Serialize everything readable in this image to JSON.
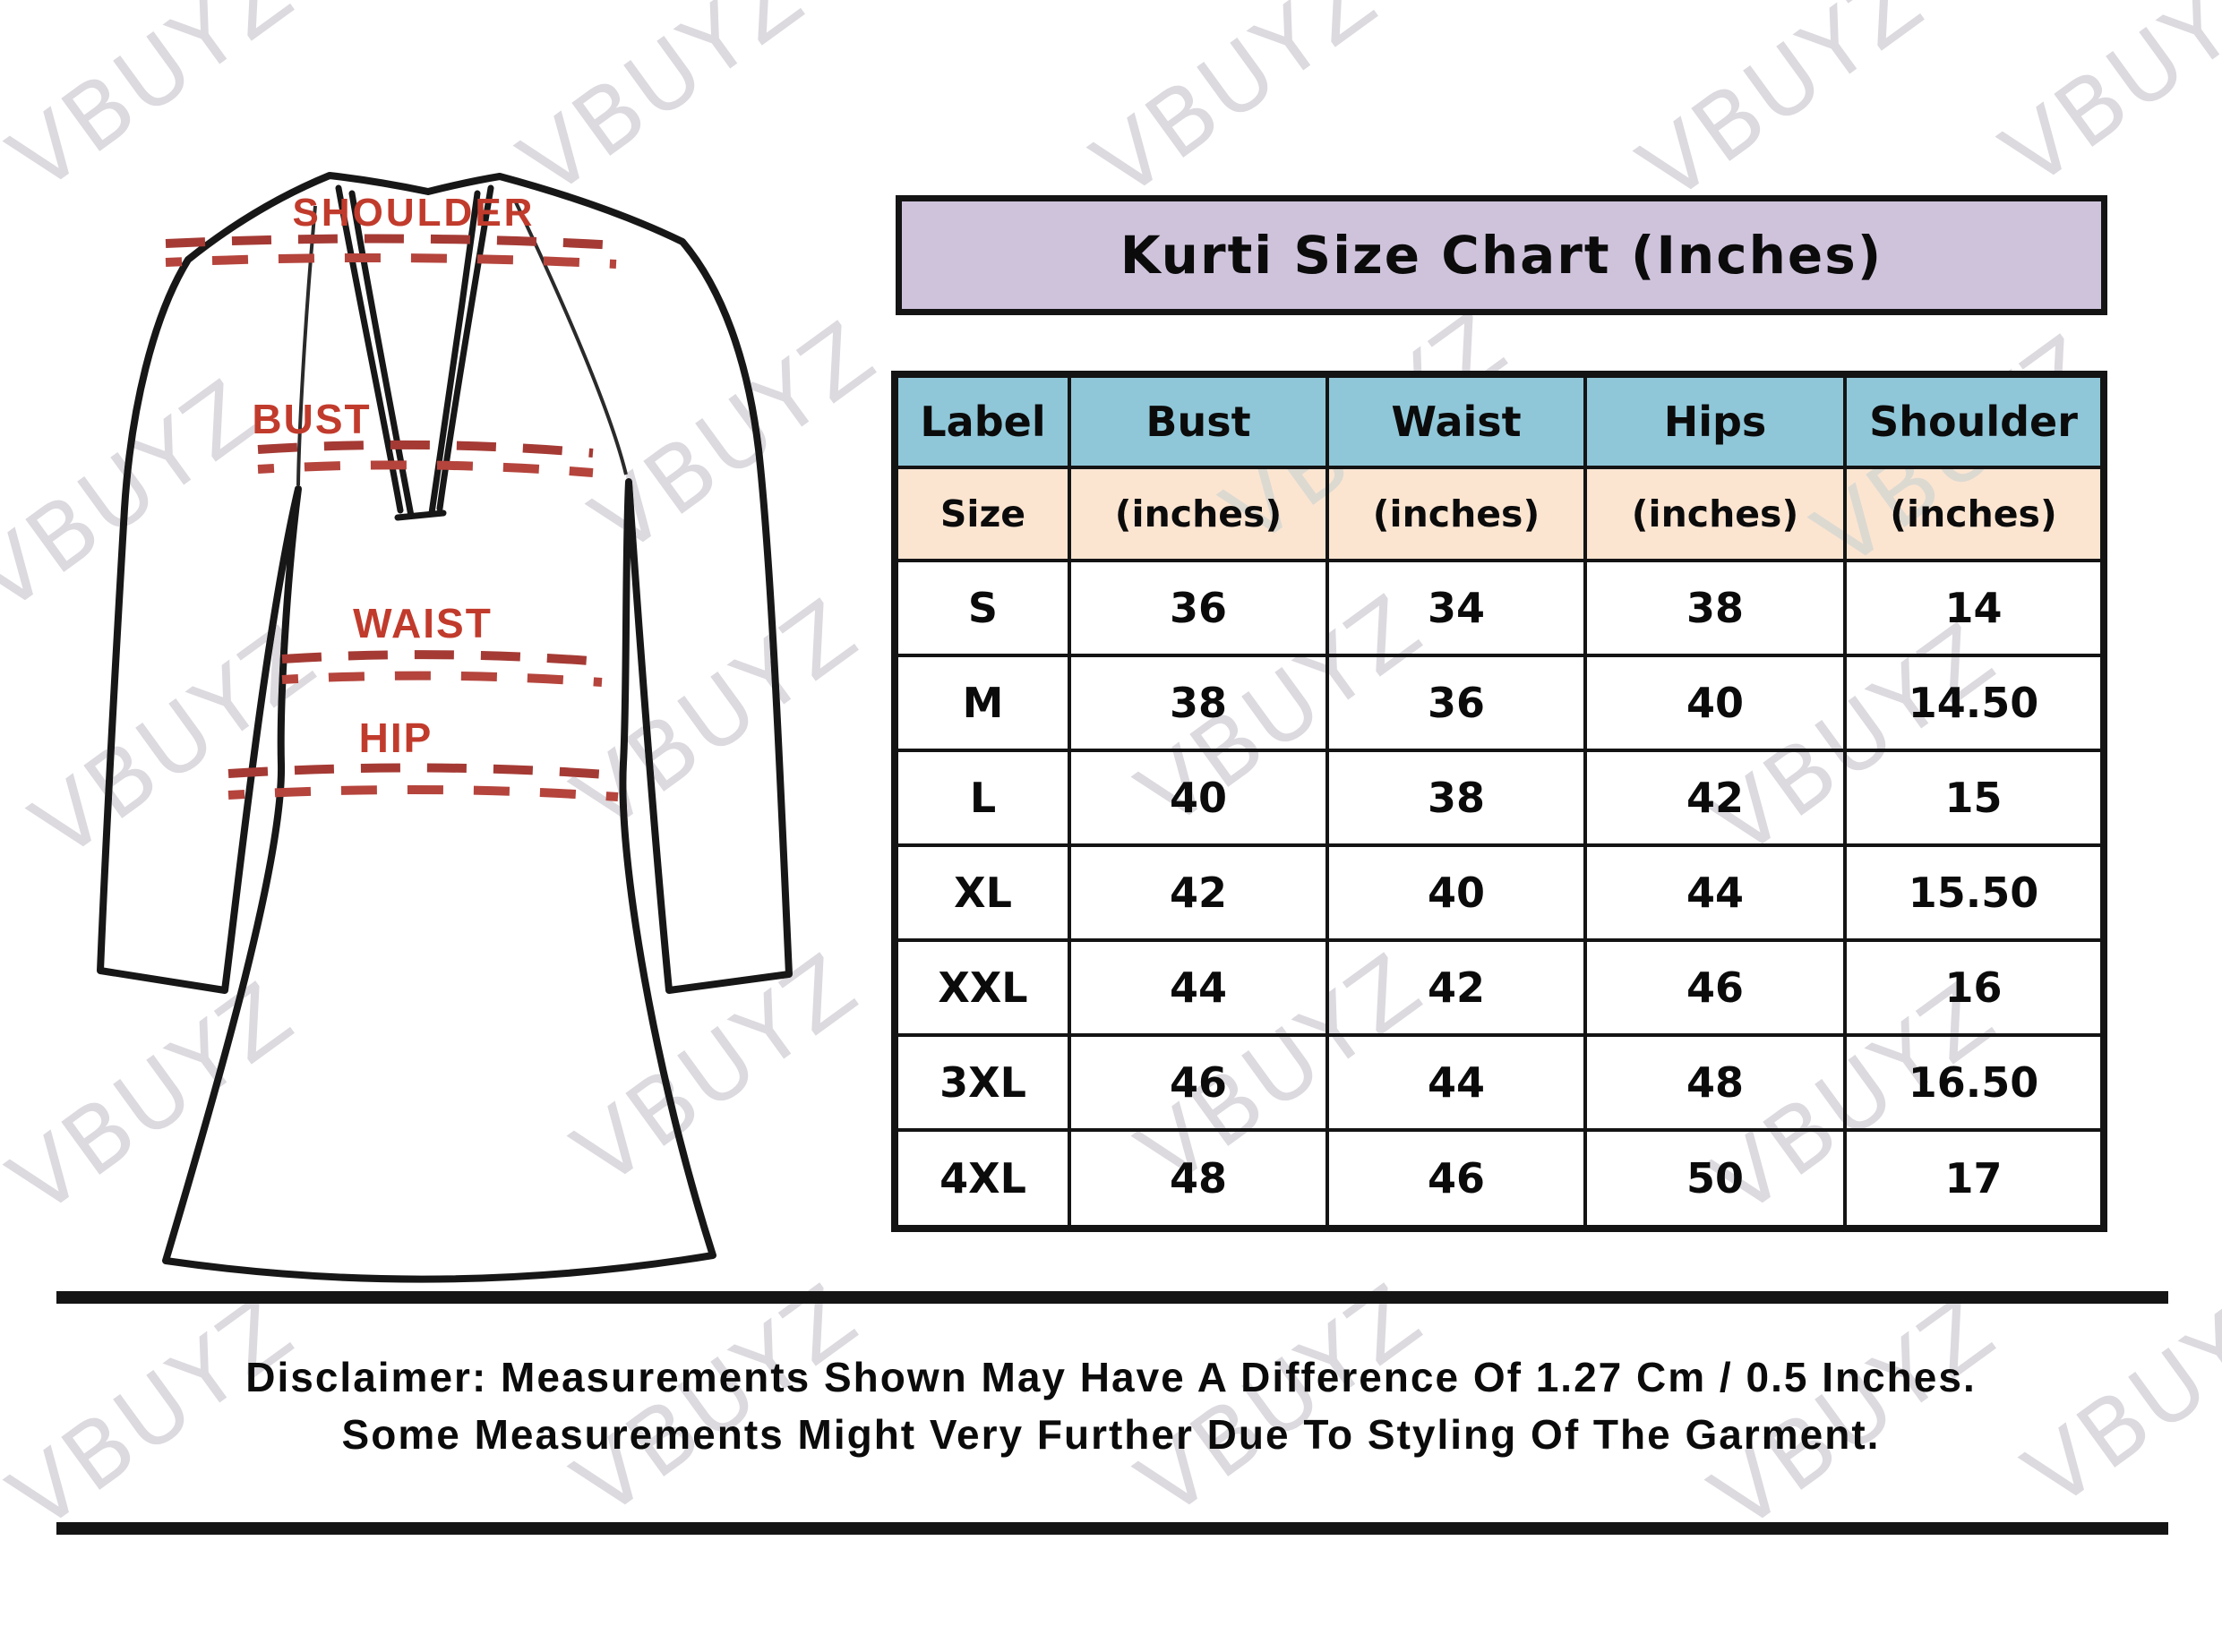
{
  "title": "Kurti Size Chart (Inches)",
  "watermark_text": "VBUYZ",
  "diagram": {
    "shoulder_label": "SHOULDER",
    "bust_label": "BUST",
    "waist_label": "WAIST",
    "hip_label": "HIP"
  },
  "table": {
    "columns": [
      {
        "label": "Label",
        "sub": "Size"
      },
      {
        "label": "Bust",
        "sub": "(inches)"
      },
      {
        "label": "Waist",
        "sub": "(inches)"
      },
      {
        "label": "Hips",
        "sub": "(inches)"
      },
      {
        "label": "Shoulder",
        "sub": "(inches)"
      }
    ],
    "rows": [
      {
        "size": "S",
        "bust": "36",
        "waist": "34",
        "hips": "38",
        "shoulder": "14"
      },
      {
        "size": "M",
        "bust": "38",
        "waist": "36",
        "hips": "40",
        "shoulder": "14.50"
      },
      {
        "size": "L",
        "bust": "40",
        "waist": "38",
        "hips": "42",
        "shoulder": "15"
      },
      {
        "size": "XL",
        "bust": "42",
        "waist": "40",
        "hips": "44",
        "shoulder": "15.50"
      },
      {
        "size": "XXL",
        "bust": "44",
        "waist": "42",
        "hips": "46",
        "shoulder": "16"
      },
      {
        "size": "3XL",
        "bust": "46",
        "waist": "44",
        "hips": "48",
        "shoulder": "16.50"
      },
      {
        "size": "4XL",
        "bust": "48",
        "waist": "46",
        "hips": "50",
        "shoulder": "17"
      }
    ]
  },
  "disclaimer": {
    "line1": "Disclaimer: Measurements Shown May Have A Difference Of 1.27 Cm / 0.5 Inches.",
    "line2": "Some Measurements Might Very Further Due To Styling Of The Garment."
  },
  "colors": {
    "title-bg": "#cfc3dc",
    "header-bg": "#8fc7d9",
    "subheader-bg": "#fbe5d1",
    "border": "#141414",
    "label-red": "#c13b2c",
    "dash-red": "#a53a34",
    "watermark": "#dcd9df"
  }
}
